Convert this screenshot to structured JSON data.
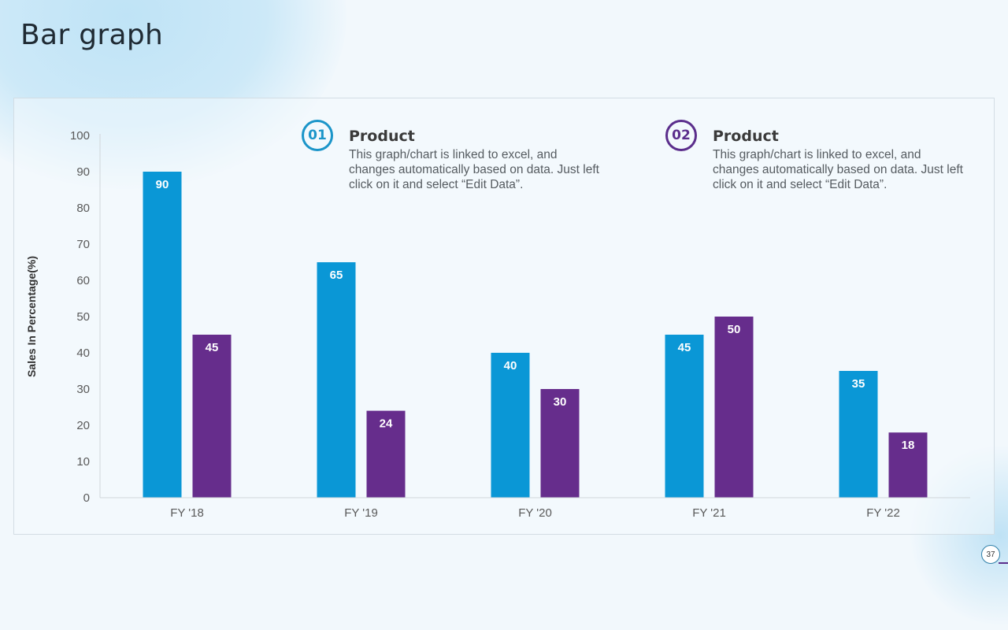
{
  "page": {
    "title": "Bar graph",
    "slide_number": "37"
  },
  "notes": [
    {
      "number": "01",
      "heading": "Product",
      "body": "This graph/chart is linked to excel, and changes automatically based on data. Just left click on it and select “Edit Data”.",
      "color": "#1b95c9"
    },
    {
      "number": "02",
      "heading": "Product",
      "body": "This graph/chart is linked to excel, and changes automatically based on data. Just left click on it and select “Edit Data”.",
      "color": "#5b2e8c"
    }
  ],
  "chart_data": {
    "type": "bar",
    "title": "",
    "xlabel": "",
    "ylabel": "Sales In Percentage(%)",
    "categories": [
      "FY '18",
      "FY '19",
      "FY '20",
      "FY '21",
      "FY '22"
    ],
    "series": [
      {
        "name": "Product 01",
        "values": [
          90,
          65,
          40,
          45,
          35
        ],
        "color": "#0a97d6"
      },
      {
        "name": "Product 02",
        "values": [
          45,
          24,
          30,
          50,
          18
        ],
        "color": "#662d8c"
      }
    ],
    "ylim": [
      0,
      100
    ],
    "yticks": [
      0,
      10,
      20,
      30,
      40,
      50,
      60,
      70,
      80,
      90,
      100
    ],
    "grid": false,
    "data_labels": true,
    "legend": "none"
  }
}
